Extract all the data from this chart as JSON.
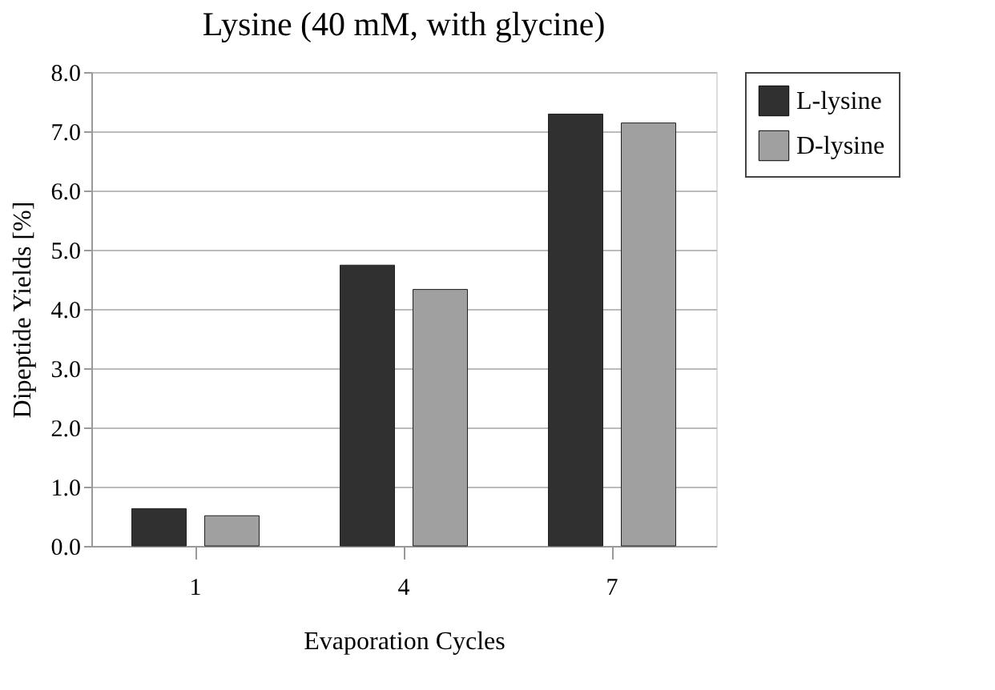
{
  "chart_data": {
    "type": "bar",
    "title": "Lysine (40 mM, with glycine)",
    "xlabel": "Evaporation Cycles",
    "ylabel": "Dipeptide Yields [%]",
    "categories": [
      "1",
      "4",
      "7"
    ],
    "series": [
      {
        "name": "L-lysine",
        "color": "#303030",
        "values": [
          0.63,
          4.74,
          7.29
        ]
      },
      {
        "name": "D-lysine",
        "color": "#a0a0a0",
        "values": [
          0.51,
          4.33,
          7.14
        ]
      }
    ],
    "ylim": [
      0,
      8
    ],
    "yticks": [
      {
        "value": 0,
        "label": "0.0"
      },
      {
        "value": 1,
        "label": "1.0"
      },
      {
        "value": 2,
        "label": "2.0"
      },
      {
        "value": 3,
        "label": "3.0"
      },
      {
        "value": 4,
        "label": "4.0"
      },
      {
        "value": 5,
        "label": "5.0"
      },
      {
        "value": 6,
        "label": "6.0"
      },
      {
        "value": 7,
        "label": "7.0"
      },
      {
        "value": 8,
        "label": "8.0"
      }
    ],
    "grid": "y",
    "legend": "right"
  }
}
